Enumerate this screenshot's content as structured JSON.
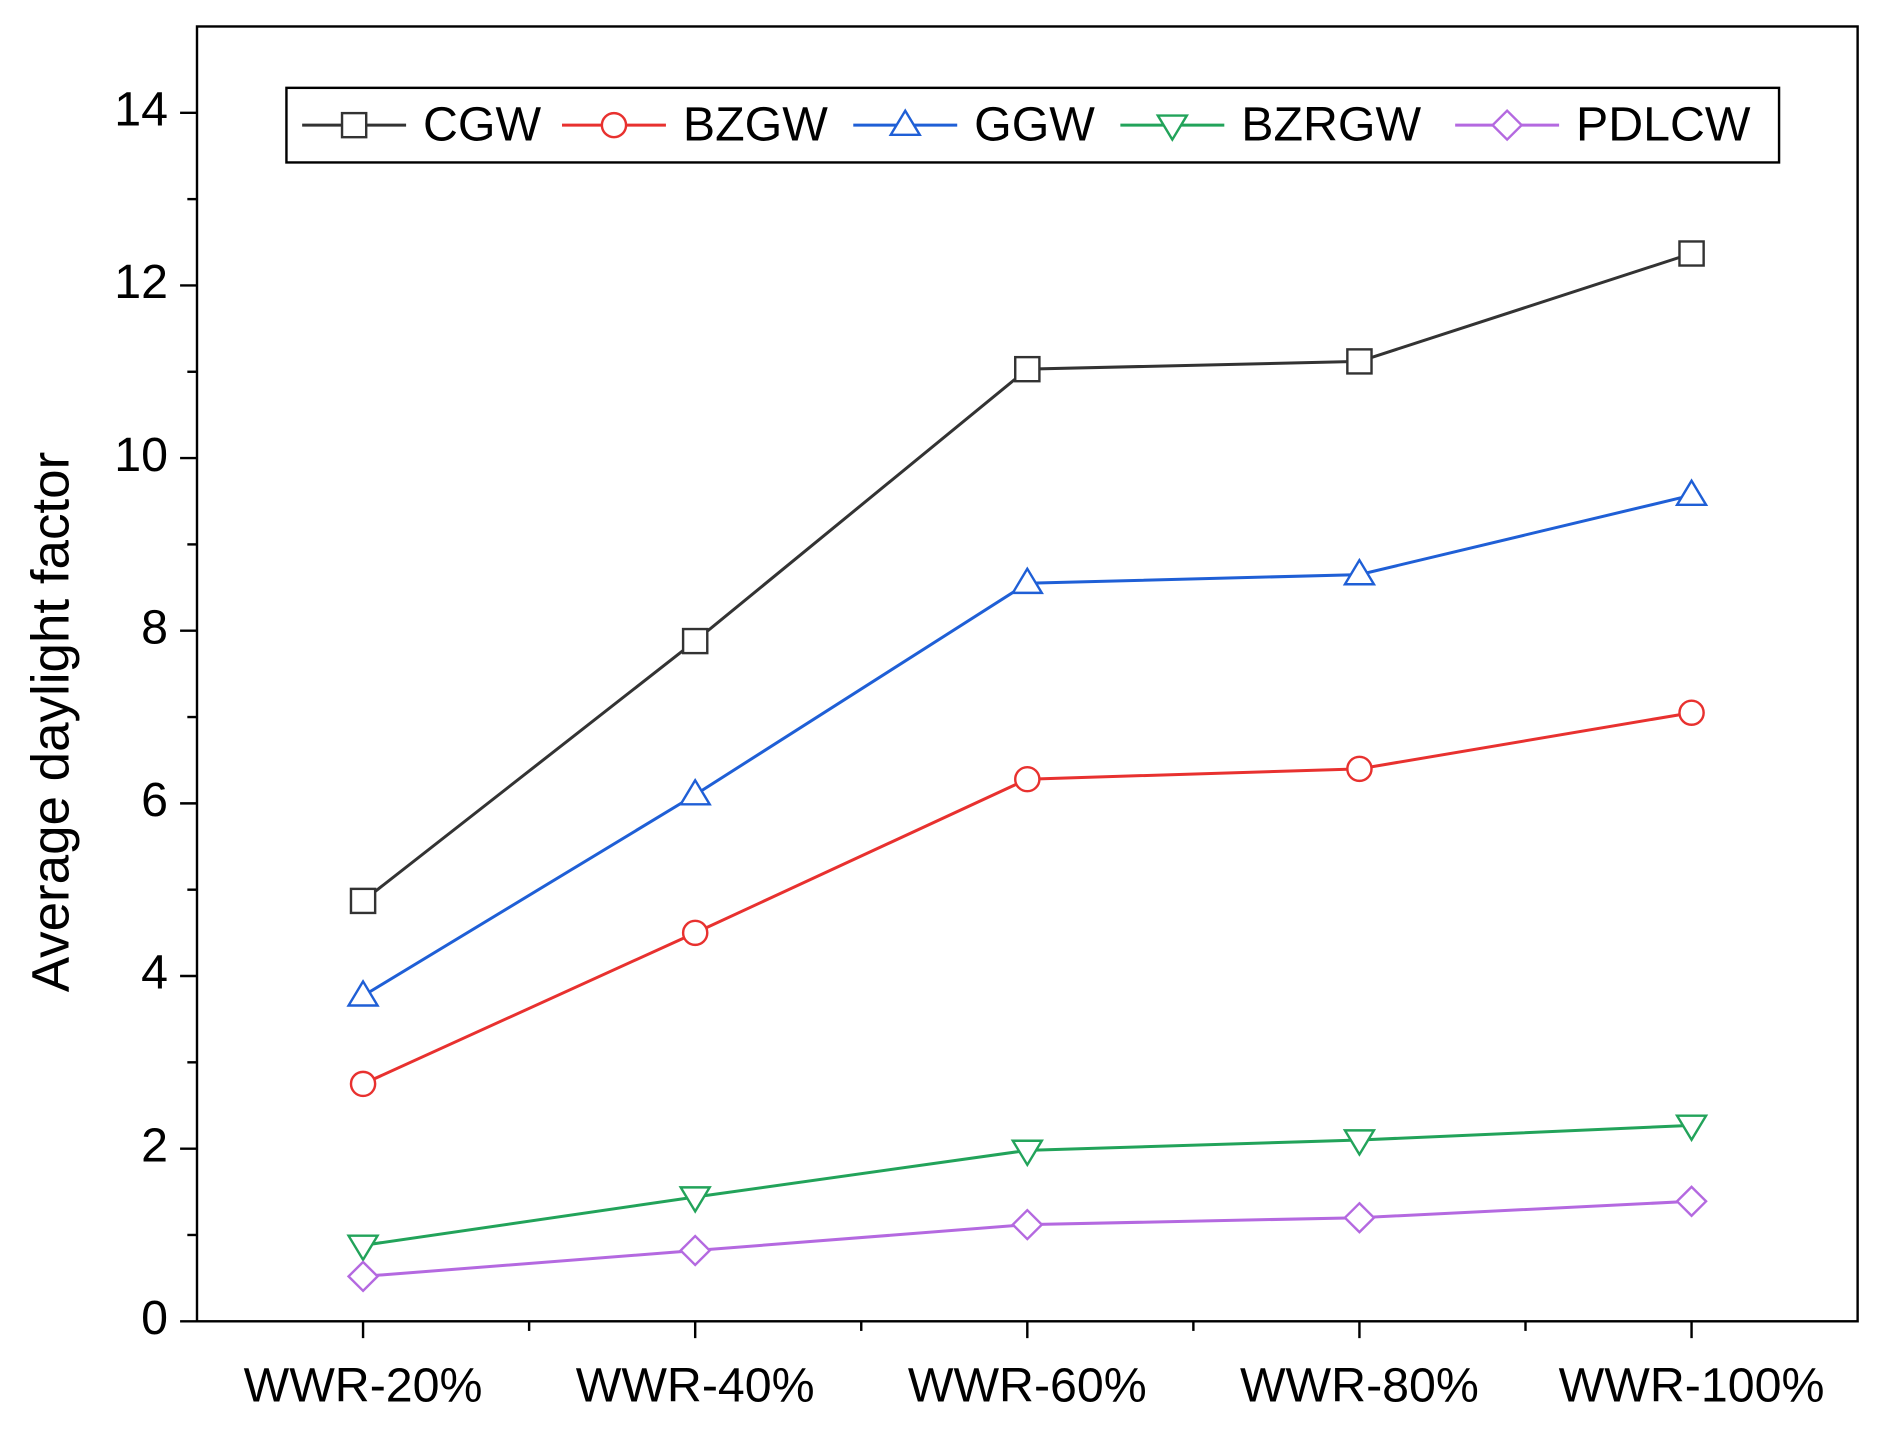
{
  "chart_data": {
    "type": "line",
    "y_label": "Average daylight factor",
    "categories": [
      "WWR-20%",
      "WWR-40%",
      "WWR-60%",
      "WWR-80%",
      "WWR-100%"
    ],
    "series": [
      {
        "name": "CGW",
        "color": "#333333",
        "marker": "square",
        "values": [
          4.87,
          7.88,
          11.03,
          11.12,
          12.37
        ]
      },
      {
        "name": "BZGW",
        "color": "#e8312f",
        "marker": "circle",
        "values": [
          2.75,
          4.5,
          6.28,
          6.4,
          7.05
        ]
      },
      {
        "name": "GGW",
        "color": "#1f5fd6",
        "marker": "triangle-up",
        "values": [
          3.77,
          6.1,
          8.55,
          8.65,
          9.57
        ]
      },
      {
        "name": "BZRGW",
        "color": "#22a35a",
        "marker": "triangle-down",
        "values": [
          0.88,
          1.44,
          1.98,
          2.1,
          2.27
        ]
      },
      {
        "name": "PDLCW",
        "color": "#b469e0",
        "marker": "diamond",
        "values": [
          0.52,
          0.82,
          1.12,
          1.2,
          1.39
        ]
      }
    ],
    "ylim": [
      0,
      15
    ],
    "yticks": [
      0,
      2,
      4,
      6,
      8,
      10,
      12,
      14
    ],
    "legend": "top"
  }
}
